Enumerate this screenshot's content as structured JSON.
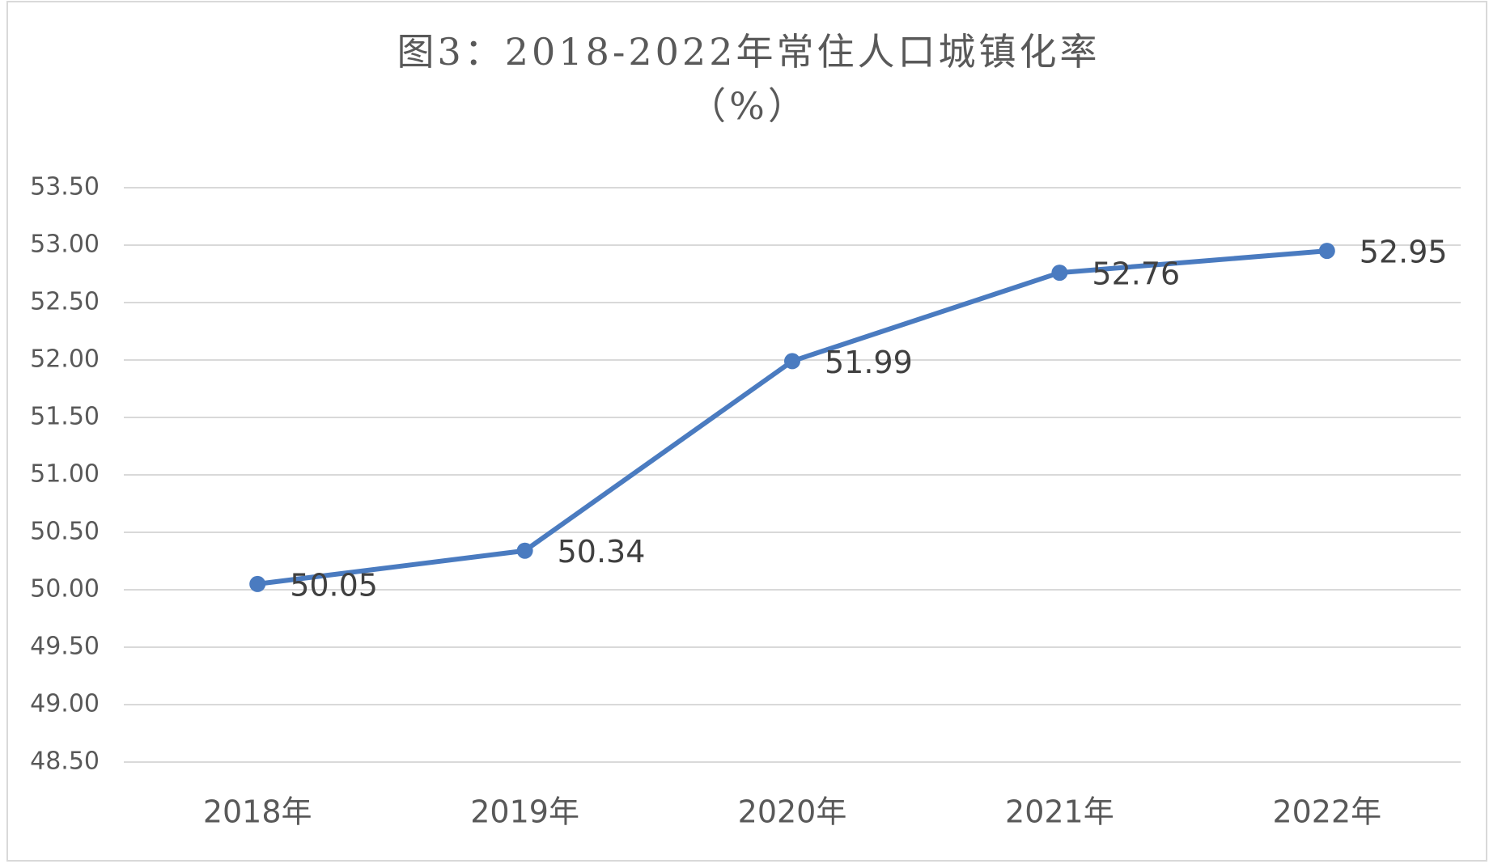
{
  "chart_data": {
    "type": "line",
    "title": "图3：2018-2022年常住人口城镇化率",
    "subtitle": "（%）",
    "categories": [
      "2018年",
      "2019年",
      "2020年",
      "2021年",
      "2022年"
    ],
    "series": [
      {
        "name": "常住人口城镇化率",
        "color": "#4a7bc0",
        "values": [
          50.05,
          50.34,
          51.99,
          52.76,
          52.95
        ]
      }
    ],
    "ylim": [
      48.5,
      53.5
    ],
    "yticks": [
      {
        "value": 48.5,
        "label": "48.50"
      },
      {
        "value": 49,
        "label": "49.00"
      },
      {
        "value": 49.5,
        "label": "49.50"
      },
      {
        "value": 50,
        "label": "50.00"
      },
      {
        "value": 50.5,
        "label": "50.50"
      },
      {
        "value": 51,
        "label": "51.00"
      },
      {
        "value": 51.5,
        "label": "51.50"
      },
      {
        "value": 52,
        "label": "52.00"
      },
      {
        "value": 52.5,
        "label": "52.50"
      },
      {
        "value": 53,
        "label": "53.00"
      },
      {
        "value": 53.5,
        "label": "53.50"
      }
    ],
    "grid": true
  }
}
